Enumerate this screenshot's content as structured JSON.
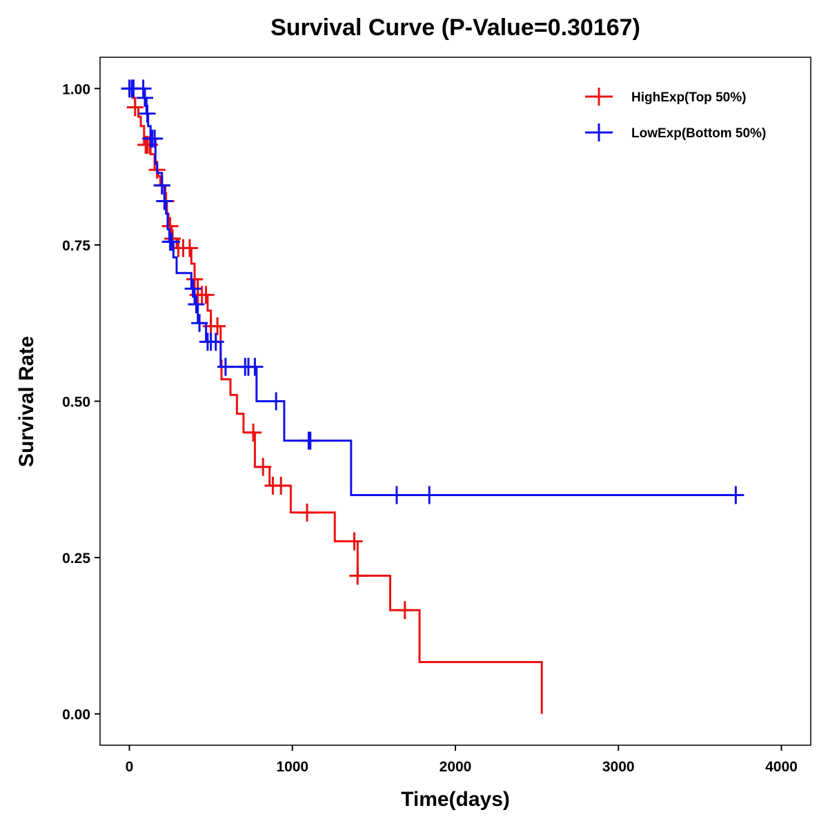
{
  "chart_data": {
    "type": "line",
    "title": "Survival Curve (P-Value=0.30167)",
    "xlabel": "Time(days)",
    "ylabel": "Survival Rate",
    "xlim": [
      -180,
      4180
    ],
    "ylim": [
      -0.05,
      1.05
    ],
    "xticks": [
      0,
      1000,
      2000,
      3000,
      4000
    ],
    "xtick_labels": [
      "0",
      "1000",
      "2000",
      "3000",
      "4000"
    ],
    "yticks": [
      0,
      0.25,
      0.5,
      0.75,
      1.0
    ],
    "ytick_labels": [
      "0.00",
      "0.25",
      "0.50",
      "0.75",
      "1.00"
    ],
    "grid": false,
    "legend_position": "top-right",
    "series": [
      {
        "name": "HighExp(Top 50%)",
        "color": "#ee1111",
        "steps": [
          [
            0,
            1.0
          ],
          [
            20,
            0.985
          ],
          [
            35,
            0.97
          ],
          [
            55,
            0.955
          ],
          [
            70,
            0.94
          ],
          [
            90,
            0.91
          ],
          [
            130,
            0.895
          ],
          [
            155,
            0.87
          ],
          [
            175,
            0.86
          ],
          [
            190,
            0.845
          ],
          [
            220,
            0.82
          ],
          [
            230,
            0.8
          ],
          [
            240,
            0.78
          ],
          [
            260,
            0.76
          ],
          [
            290,
            0.745
          ],
          [
            380,
            0.72
          ],
          [
            400,
            0.695
          ],
          [
            420,
            0.67
          ],
          [
            480,
            0.645
          ],
          [
            500,
            0.62
          ],
          [
            560,
            0.565
          ],
          [
            565,
            0.535
          ],
          [
            620,
            0.51
          ],
          [
            660,
            0.48
          ],
          [
            700,
            0.45
          ],
          [
            770,
            0.395
          ],
          [
            860,
            0.365
          ],
          [
            990,
            0.322
          ],
          [
            1260,
            0.276
          ],
          [
            1400,
            0.221
          ],
          [
            1600,
            0.166
          ],
          [
            1780,
            0.083
          ],
          [
            2530,
            0.0
          ]
        ],
        "end_time": 2530,
        "censored": [
          35,
          100,
          110,
          125,
          170,
          200,
          225,
          250,
          265,
          300,
          330,
          370,
          400,
          420,
          445,
          470,
          500,
          540,
          760,
          820,
          880,
          930,
          1090,
          1380,
          1400,
          1690
        ]
      },
      {
        "name": "LowExp(Bottom 50%)",
        "color": "#1111ee",
        "steps": [
          [
            0,
            1.0
          ],
          [
            95,
            0.985
          ],
          [
            105,
            0.96
          ],
          [
            115,
            0.94
          ],
          [
            130,
            0.92
          ],
          [
            160,
            0.88
          ],
          [
            170,
            0.865
          ],
          [
            200,
            0.845
          ],
          [
            215,
            0.82
          ],
          [
            225,
            0.8
          ],
          [
            235,
            0.775
          ],
          [
            245,
            0.755
          ],
          [
            270,
            0.73
          ],
          [
            290,
            0.705
          ],
          [
            380,
            0.68
          ],
          [
            400,
            0.655
          ],
          [
            420,
            0.625
          ],
          [
            470,
            0.595
          ],
          [
            560,
            0.555
          ],
          [
            780,
            0.5
          ],
          [
            950,
            0.437
          ],
          [
            1360,
            0.35
          ]
        ],
        "end_time": 3740,
        "censored": [
          0,
          15,
          25,
          85,
          95,
          110,
          130,
          140,
          155,
          200,
          215,
          250,
          260,
          390,
          410,
          430,
          480,
          500,
          530,
          590,
          710,
          730,
          770,
          900,
          1100,
          1110,
          1640,
          1840,
          3720
        ]
      }
    ]
  }
}
